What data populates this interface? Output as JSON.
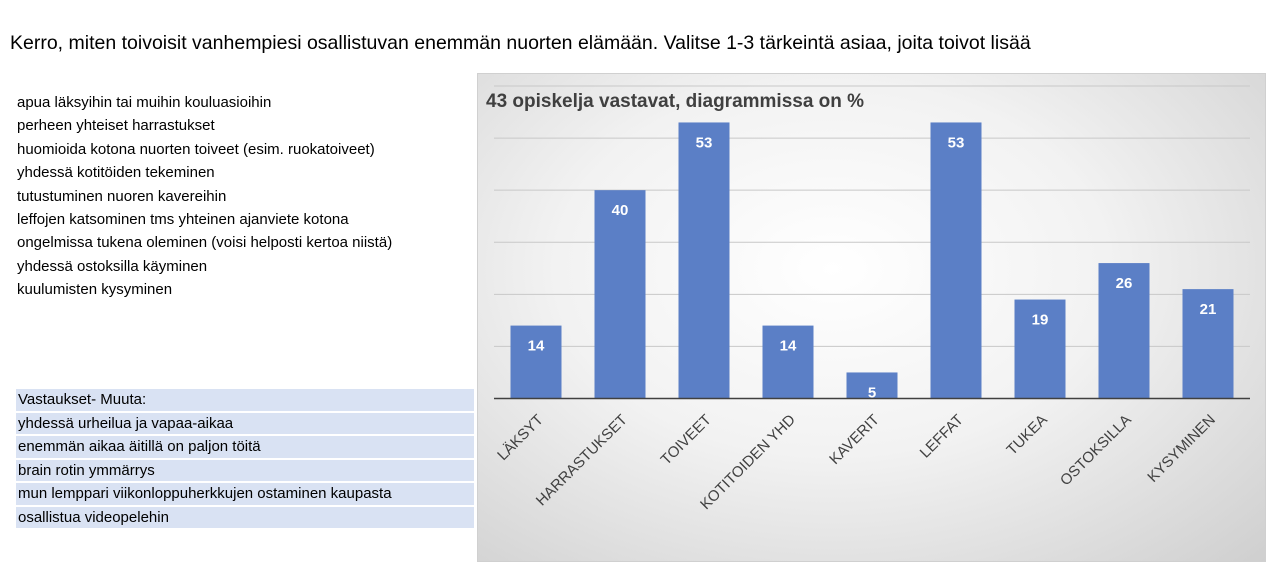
{
  "heading": "Kerro, miten toivoisit vanhempiesi osallistuvan enemmän nuorten elämään. Valitse 1-3  tärkeintä asiaa, joita toivot lisää",
  "options": [
    "apua läksyihin tai muihin kouluasioihin",
    "perheen yhteiset harrastukset",
    "huomioida kotona nuorten toiveet (esim. ruokatoiveet)",
    "yhdessä kotitöiden tekeminen",
    "tutustuminen nuoren kavereihin",
    "leffojen katsominen tms yhteinen ajanviete kotona",
    "ongelmissa tukena oleminen (voisi helposti kertoa niistä)",
    "yhdessä ostoksilla käyminen",
    "kuulumisten kysyminen"
  ],
  "answers": [
    "Vastaukset- Muuta:",
    "yhdessä urheilua ja vapaa-aikaa",
    "enemmän aikaa äitillä  on paljon töitä",
    "brain rotin ymmärrys",
    "mun lemppari viikonloppuherkkujen ostaminen kaupasta",
    "osallistua videopelehin"
  ],
  "chart_data": {
    "type": "bar",
    "title": "43 opiskelja vastavat, diagrammissa on %",
    "categories": [
      "LÄKSYT",
      "HARRASTUKSET",
      "TOIVEET",
      "KOTITOIDEN  YHD",
      "KAVERIT",
      "LEFFAT",
      "TUKEA",
      "OSTOKSILLA",
      "KYSYMINEN"
    ],
    "values": [
      14,
      40,
      53,
      14,
      5,
      53,
      19,
      26,
      21
    ],
    "ylim": [
      0,
      60
    ],
    "grid": true,
    "bar_color": "#5b7fc6",
    "legend": "none"
  }
}
